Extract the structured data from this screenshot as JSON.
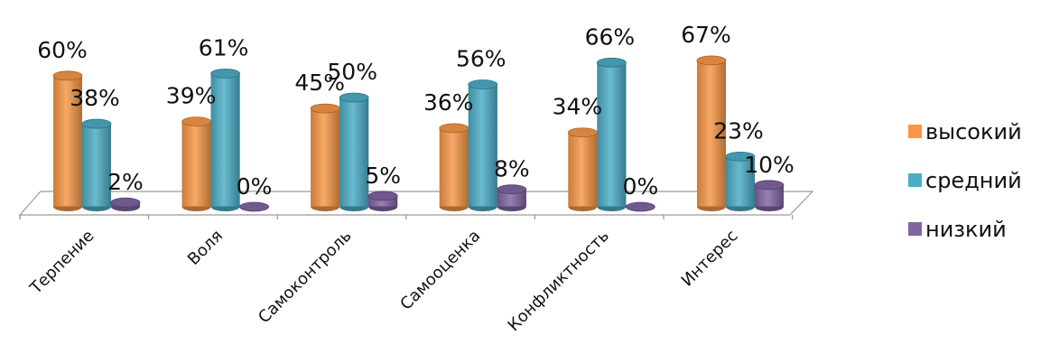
{
  "chart_data": {
    "type": "bar",
    "title": "",
    "xlabel": "",
    "ylabel": "",
    "ylim": [
      0,
      70
    ],
    "grid": false,
    "legend_position": "right",
    "categories": [
      "Терпение",
      "Воля",
      "Самоконтроль",
      "Самооценка",
      "Конфликтность",
      "Интерес"
    ],
    "series": [
      {
        "name": "высокий",
        "values": [
          60,
          39,
          45,
          36,
          34,
          67
        ],
        "labels": [
          "60%",
          "39%",
          "45%",
          "36%",
          "34%",
          "67%"
        ],
        "color": "#F79646"
      },
      {
        "name": "средний",
        "values": [
          38,
          61,
          50,
          56,
          66,
          23
        ],
        "labels": [
          "38%",
          "61%",
          "50%",
          "56%",
          "66%",
          "23%"
        ],
        "color": "#4BACC6"
      },
      {
        "name": "низкий",
        "values": [
          2,
          0,
          5,
          8,
          0,
          10
        ],
        "labels": [
          "2%",
          "0%",
          "5%",
          "8%",
          "0%",
          "10%"
        ],
        "color": "#8064A2"
      }
    ]
  }
}
